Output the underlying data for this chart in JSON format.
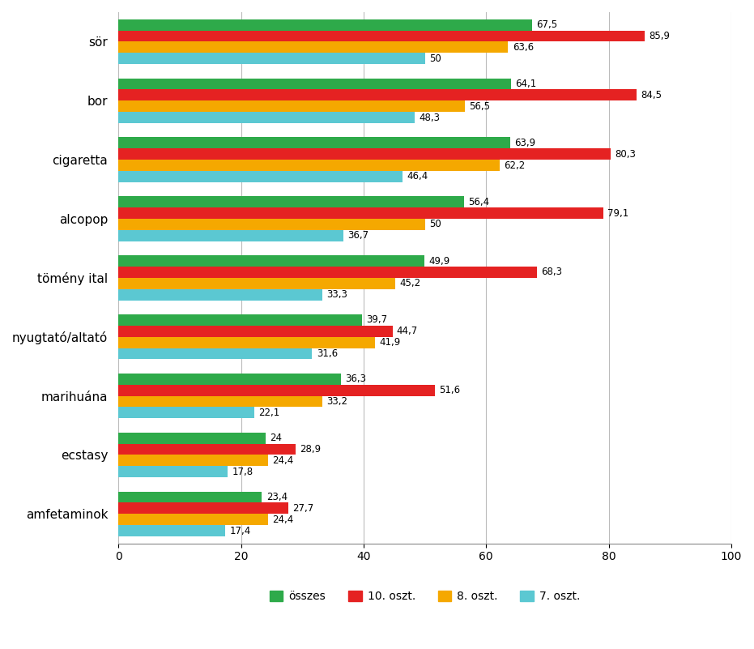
{
  "categories": [
    "sör",
    "bor",
    "cigaretta",
    "alcopop",
    "tömény ital",
    "nyugtató/altató",
    "marihuána",
    "ecstasy",
    "amfetaminok"
  ],
  "series": {
    "összes": [
      67.5,
      64.1,
      63.9,
      56.4,
      49.9,
      39.7,
      36.3,
      24.0,
      23.4
    ],
    "10. oszt.": [
      85.9,
      84.5,
      80.3,
      79.1,
      68.3,
      44.7,
      51.6,
      28.9,
      27.7
    ],
    "8. oszt.": [
      63.6,
      56.5,
      62.2,
      50.0,
      45.2,
      41.9,
      33.2,
      24.4,
      24.4
    ],
    "7. oszt.": [
      50.0,
      48.3,
      46.4,
      36.7,
      33.3,
      31.6,
      22.1,
      17.8,
      17.4
    ]
  },
  "series_order": [
    "összes",
    "10. oszt.",
    "8. oszt.",
    "7. oszt."
  ],
  "colors": {
    "összes": "#2EAA4A",
    "10. oszt.": "#E52222",
    "8. oszt.": "#F5A800",
    "7. oszt.": "#5BC8D2"
  },
  "xlim": [
    0,
    100
  ],
  "xticks": [
    0,
    20,
    40,
    60,
    80,
    100
  ],
  "bar_height": 0.19,
  "value_fontsize": 8.5,
  "label_fontsize": 11,
  "tick_fontsize": 10,
  "figsize": [
    9.31,
    8.01
  ],
  "dpi": 100,
  "background_color": "#FFFFFF",
  "grid_color": "#BBBBBB"
}
